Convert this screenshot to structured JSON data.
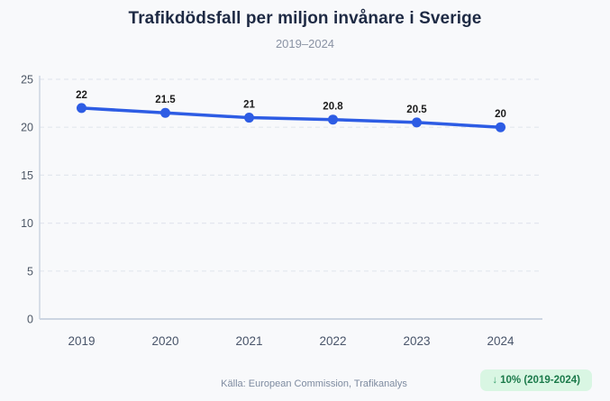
{
  "header": {
    "title": "Trafikdödsfall per miljon invånare i Sverige",
    "subtitle": "2019–2024"
  },
  "chart_data": {
    "type": "line",
    "title": "Trafikdödsfall per miljon invånare i Sverige",
    "subtitle": "2019–2024",
    "categories": [
      "2019",
      "2020",
      "2021",
      "2022",
      "2023",
      "2024"
    ],
    "series": [
      {
        "name": "Trafikdödsfall per miljon invånare",
        "values": [
          22,
          21.5,
          21,
          20.8,
          20.5,
          20
        ],
        "point_labels": [
          "22",
          "21.5",
          "21",
          "20.8",
          "20.5",
          "20"
        ],
        "color": "#2d5ce4"
      }
    ],
    "ylim": [
      0,
      25
    ],
    "yticks": [
      0,
      5,
      10,
      15,
      20,
      25
    ],
    "xlabel": "",
    "ylabel": "",
    "grid": "horizontal-dashed",
    "legend": "none"
  },
  "footer": {
    "source": "Källa: European Commission, Trafikanalys",
    "badge": {
      "arrow": "↓",
      "text": "10% (2019-2024)"
    }
  },
  "colors": {
    "background": "#f8f9fb",
    "line": "#2d5ce4",
    "title": "#1e2a44",
    "subtitle": "#8a93a4",
    "y_tick_label": "#4d5766",
    "x_tick_label": "#49556a",
    "grid": "#e3e7ee",
    "axis": "#ccd5e2",
    "data_label": "#1c1c1c",
    "source_text": "#7e8ba0",
    "badge_bg": "#d9f6e3",
    "badge_text": "#1b7a4a"
  }
}
